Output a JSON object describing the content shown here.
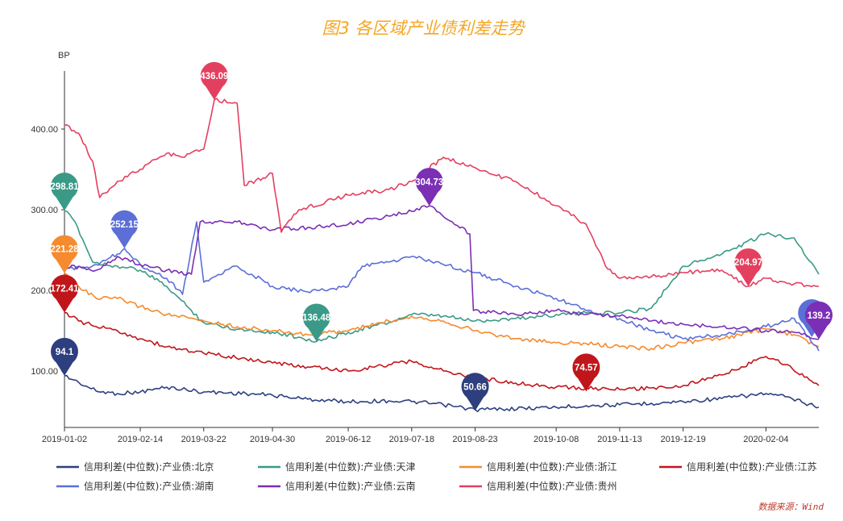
{
  "chart_data": {
    "type": "line",
    "title": "图3 各区域产业债利差走势",
    "ylabel": "BP",
    "ylim": [
      30,
      470
    ],
    "yticks": [
      100,
      200,
      300,
      400
    ],
    "ytick_labels": [
      "100.00",
      "200.00",
      "300.00",
      "400.00"
    ],
    "xlim": [
      "2019-01-02",
      "2020-03-05"
    ],
    "xticks": [
      "2019-01-02",
      "2019-02-14",
      "2019-03-22",
      "2019-04-30",
      "2019-06-12",
      "2019-07-18",
      "2019-08-23",
      "2019-10-08",
      "2019-11-13",
      "2019-12-19",
      "2020-02-04"
    ],
    "legend_position": "bottom",
    "source": "数据来源：Wind",
    "series": [
      {
        "name": "信用利差(中位数):产业债:北京",
        "color": "#2e3f7f",
        "points": [
          [
            "2019-01-02",
            94.1
          ],
          [
            "2019-01-10",
            86
          ],
          [
            "2019-01-20",
            75
          ],
          [
            "2019-02-01",
            72
          ],
          [
            "2019-02-14",
            74
          ],
          [
            "2019-03-01",
            80
          ],
          [
            "2019-03-22",
            74
          ],
          [
            "2019-04-15",
            72
          ],
          [
            "2019-04-30",
            70
          ],
          [
            "2019-05-20",
            65
          ],
          [
            "2019-06-12",
            62
          ],
          [
            "2019-07-05",
            63
          ],
          [
            "2019-07-18",
            62
          ],
          [
            "2019-08-05",
            58
          ],
          [
            "2019-08-23",
            52
          ],
          [
            "2019-09-10",
            53
          ],
          [
            "2019-10-08",
            55
          ],
          [
            "2019-10-25",
            57
          ],
          [
            "2019-11-13",
            58
          ],
          [
            "2019-12-01",
            60
          ],
          [
            "2019-12-19",
            62
          ],
          [
            "2020-01-10",
            66
          ],
          [
            "2020-02-04",
            72
          ],
          [
            "2020-02-15",
            68
          ],
          [
            "2020-03-05",
            55
          ]
        ],
        "pins": [
          {
            "x": "2019-01-02",
            "y": 94.1,
            "label": "94.1"
          },
          {
            "x": "2019-08-23",
            "y": 50.66,
            "label": "50.66"
          }
        ]
      },
      {
        "name": "信用利差(中位数):产业债:天津",
        "color": "#3a9a87",
        "points": [
          [
            "2019-01-02",
            298.81
          ],
          [
            "2019-01-08",
            285
          ],
          [
            "2019-01-18",
            235
          ],
          [
            "2019-02-01",
            230
          ],
          [
            "2019-02-14",
            225
          ],
          [
            "2019-03-01",
            205
          ],
          [
            "2019-03-15",
            175
          ],
          [
            "2019-03-22",
            160
          ],
          [
            "2019-04-10",
            152
          ],
          [
            "2019-04-30",
            148
          ],
          [
            "2019-05-15",
            142
          ],
          [
            "2019-05-25",
            136.48
          ],
          [
            "2019-06-12",
            148
          ],
          [
            "2019-07-05",
            160
          ],
          [
            "2019-07-18",
            170
          ],
          [
            "2019-08-05",
            168
          ],
          [
            "2019-08-23",
            162
          ],
          [
            "2019-09-15",
            165
          ],
          [
            "2019-10-08",
            170
          ],
          [
            "2019-10-25",
            172
          ],
          [
            "2019-11-13",
            172
          ],
          [
            "2019-12-01",
            178
          ],
          [
            "2019-12-19",
            230
          ],
          [
            "2020-01-10",
            245
          ],
          [
            "2020-02-04",
            270
          ],
          [
            "2020-02-20",
            265
          ],
          [
            "2020-03-05",
            220
          ]
        ],
        "pins": [
          {
            "x": "2019-01-02",
            "y": 298.81,
            "label": "298.81"
          },
          {
            "x": "2019-05-25",
            "y": 136.48,
            "label": "136.48"
          }
        ]
      },
      {
        "name": "信用利差(中位数):产业债:浙江",
        "color": "#f58a2e",
        "points": [
          [
            "2019-01-02",
            221.28
          ],
          [
            "2019-01-10",
            205
          ],
          [
            "2019-01-20",
            190
          ],
          [
            "2019-02-01",
            190
          ],
          [
            "2019-02-14",
            180
          ],
          [
            "2019-03-01",
            170
          ],
          [
            "2019-03-22",
            162
          ],
          [
            "2019-04-10",
            155
          ],
          [
            "2019-04-30",
            150
          ],
          [
            "2019-05-20",
            145
          ],
          [
            "2019-06-12",
            150
          ],
          [
            "2019-07-05",
            162
          ],
          [
            "2019-07-18",
            168
          ],
          [
            "2019-08-05",
            162
          ],
          [
            "2019-08-23",
            150
          ],
          [
            "2019-09-15",
            140
          ],
          [
            "2019-10-08",
            135
          ],
          [
            "2019-10-25",
            134
          ],
          [
            "2019-11-13",
            130
          ],
          [
            "2019-12-01",
            128
          ],
          [
            "2019-12-19",
            135
          ],
          [
            "2020-01-10",
            140
          ],
          [
            "2020-02-04",
            152
          ],
          [
            "2020-02-20",
            145
          ],
          [
            "2020-03-05",
            130
          ]
        ],
        "pins": [
          {
            "x": "2019-01-02",
            "y": 221.28,
            "label": "221.28"
          }
        ]
      },
      {
        "name": "信用利差(中位数):产业债:江苏",
        "color": "#c0161b",
        "points": [
          [
            "2019-01-02",
            172.41
          ],
          [
            "2019-01-10",
            162
          ],
          [
            "2019-01-20",
            155
          ],
          [
            "2019-02-01",
            150
          ],
          [
            "2019-02-14",
            140
          ],
          [
            "2019-03-01",
            130
          ],
          [
            "2019-03-22",
            122
          ],
          [
            "2019-04-15",
            115
          ],
          [
            "2019-04-30",
            110
          ],
          [
            "2019-05-20",
            105
          ],
          [
            "2019-06-12",
            100
          ],
          [
            "2019-07-05",
            108
          ],
          [
            "2019-07-18",
            112
          ],
          [
            "2019-08-05",
            100
          ],
          [
            "2019-08-23",
            92
          ],
          [
            "2019-09-15",
            85
          ],
          [
            "2019-10-08",
            80
          ],
          [
            "2019-10-25",
            79
          ],
          [
            "2019-11-13",
            77
          ],
          [
            "2019-12-01",
            79
          ],
          [
            "2019-12-19",
            82
          ],
          [
            "2020-01-10",
            95
          ],
          [
            "2020-02-04",
            118
          ],
          [
            "2020-02-15",
            108
          ],
          [
            "2020-03-05",
            82
          ]
        ],
        "pins": [
          {
            "x": "2019-01-02",
            "y": 172.41,
            "label": "172.41"
          },
          {
            "x": "2019-10-25",
            "y": 74.57,
            "label": "74.57"
          }
        ]
      },
      {
        "name": "信用利差(中位数):产业债:湖南",
        "color": "#5b6fd6",
        "points": [
          [
            "2019-01-02",
            225
          ],
          [
            "2019-01-20",
            232
          ],
          [
            "2019-02-01",
            245
          ],
          [
            "2019-02-05",
            252.15
          ],
          [
            "2019-02-14",
            232
          ],
          [
            "2019-03-01",
            215
          ],
          [
            "2019-03-10",
            195
          ],
          [
            "2019-03-18",
            285
          ],
          [
            "2019-03-22",
            210
          ],
          [
            "2019-04-10",
            230
          ],
          [
            "2019-04-30",
            205
          ],
          [
            "2019-05-20",
            198
          ],
          [
            "2019-06-12",
            205
          ],
          [
            "2019-06-20",
            230
          ],
          [
            "2019-07-05",
            235
          ],
          [
            "2019-07-18",
            242
          ],
          [
            "2019-08-05",
            232
          ],
          [
            "2019-08-23",
            222
          ],
          [
            "2019-09-15",
            205
          ],
          [
            "2019-10-08",
            190
          ],
          [
            "2019-10-25",
            175
          ],
          [
            "2019-11-13",
            165
          ],
          [
            "2019-12-01",
            150
          ],
          [
            "2019-12-19",
            140
          ],
          [
            "2020-01-10",
            145
          ],
          [
            "2020-02-04",
            155
          ],
          [
            "2020-02-20",
            165
          ],
          [
            "2020-03-05",
            125
          ]
        ],
        "pins": [
          {
            "x": "2019-02-05",
            "y": 252.15,
            "label": "252.15"
          },
          {
            "x": "2020-03-01",
            "y": 142,
            "label": "1"
          }
        ]
      },
      {
        "name": "信用利差(中位数):产业债:云南",
        "color": "#7b2fb5",
        "points": [
          [
            "2019-01-02",
            230
          ],
          [
            "2019-01-20",
            225
          ],
          [
            "2019-02-01",
            242
          ],
          [
            "2019-02-14",
            232
          ],
          [
            "2019-03-01",
            225
          ],
          [
            "2019-03-15",
            220
          ],
          [
            "2019-03-20",
            285
          ],
          [
            "2019-04-10",
            285
          ],
          [
            "2019-04-30",
            275
          ],
          [
            "2019-05-20",
            278
          ],
          [
            "2019-06-12",
            282
          ],
          [
            "2019-07-05",
            292
          ],
          [
            "2019-07-18",
            298
          ],
          [
            "2019-07-28",
            304.73
          ],
          [
            "2019-08-10",
            285
          ],
          [
            "2019-08-20",
            270
          ],
          [
            "2019-08-22",
            175
          ],
          [
            "2019-09-15",
            170
          ],
          [
            "2019-10-08",
            175
          ],
          [
            "2019-10-25",
            170
          ],
          [
            "2019-11-13",
            168
          ],
          [
            "2019-12-01",
            162
          ],
          [
            "2019-12-19",
            158
          ],
          [
            "2020-01-10",
            155
          ],
          [
            "2020-02-04",
            150
          ],
          [
            "2020-02-20",
            148
          ],
          [
            "2020-03-05",
            139.2
          ]
        ],
        "pins": [
          {
            "x": "2019-07-28",
            "y": 304.73,
            "label": "304.73"
          },
          {
            "x": "2020-03-05",
            "y": 139.2,
            "label": "139.2"
          }
        ]
      },
      {
        "name": "信用利差(中位数):产业债:贵州",
        "color": "#e3405f",
        "points": [
          [
            "2019-01-02",
            405
          ],
          [
            "2019-01-10",
            395
          ],
          [
            "2019-01-18",
            360
          ],
          [
            "2019-01-22",
            315
          ],
          [
            "2019-02-01",
            335
          ],
          [
            "2019-02-14",
            350
          ],
          [
            "2019-03-01",
            370
          ],
          [
            "2019-03-10",
            365
          ],
          [
            "2019-03-22",
            375
          ],
          [
            "2019-03-28",
            436.09
          ],
          [
            "2019-04-10",
            432
          ],
          [
            "2019-04-14",
            330
          ],
          [
            "2019-04-30",
            345
          ],
          [
            "2019-05-05",
            272
          ],
          [
            "2019-05-15",
            300
          ],
          [
            "2019-06-12",
            318
          ],
          [
            "2019-07-05",
            325
          ],
          [
            "2019-07-18",
            335
          ],
          [
            "2019-08-05",
            365
          ],
          [
            "2019-08-23",
            352
          ],
          [
            "2019-09-15",
            335
          ],
          [
            "2019-10-08",
            305
          ],
          [
            "2019-10-25",
            282
          ],
          [
            "2019-11-05",
            230
          ],
          [
            "2019-11-13",
            215
          ],
          [
            "2019-12-01",
            217
          ],
          [
            "2019-12-19",
            222
          ],
          [
            "2020-01-10",
            225
          ],
          [
            "2020-01-25",
            204.97
          ],
          [
            "2020-02-04",
            215
          ],
          [
            "2020-02-20",
            208
          ],
          [
            "2020-03-05",
            205
          ]
        ],
        "pins": [
          {
            "x": "2019-03-28",
            "y": 436.09,
            "label": "436.09"
          },
          {
            "x": "2020-01-25",
            "y": 204.97,
            "label": "204.97"
          }
        ]
      }
    ]
  }
}
